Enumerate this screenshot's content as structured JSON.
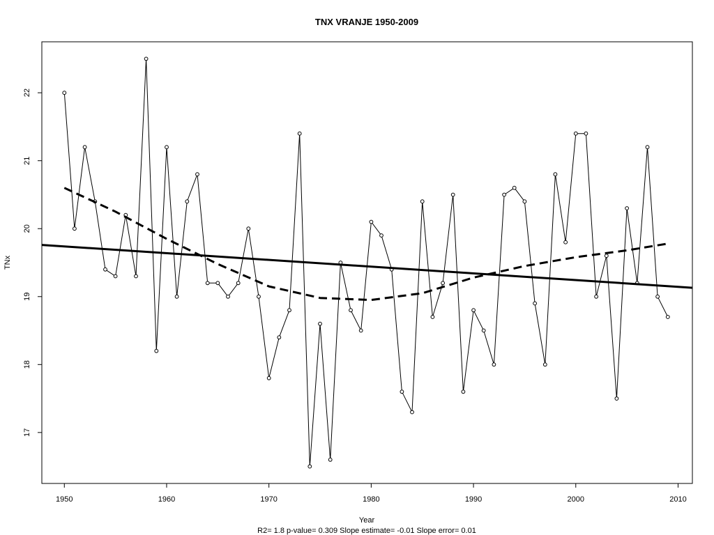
{
  "chart_data": {
    "type": "line",
    "title": "TNX   VRANJE 1950-2009",
    "xlabel": "Year",
    "ylabel": "TNx",
    "subtitle": "R2= 1.8  p-value= 0.309  Slope estimate= -0.01  Slope error= 0.01",
    "xlim": [
      1947.8,
      2011.4
    ],
    "ylim": [
      16.25,
      22.75
    ],
    "x_ticks": [
      1950,
      1960,
      1970,
      1980,
      1990,
      2000,
      2010
    ],
    "y_ticks": [
      17,
      18,
      19,
      20,
      21,
      22
    ],
    "grid": false,
    "x": [
      1950,
      1951,
      1952,
      1953,
      1954,
      1955,
      1956,
      1957,
      1958,
      1959,
      1960,
      1961,
      1962,
      1963,
      1964,
      1965,
      1966,
      1967,
      1968,
      1969,
      1970,
      1971,
      1972,
      1973,
      1974,
      1975,
      1976,
      1977,
      1978,
      1979,
      1980,
      1981,
      1982,
      1983,
      1984,
      1985,
      1986,
      1987,
      1988,
      1989,
      1990,
      1991,
      1992,
      1993,
      1994,
      1995,
      1996,
      1997,
      1998,
      1999,
      2000,
      2001,
      2002,
      2003,
      2004,
      2005,
      2006,
      2007,
      2008,
      2009
    ],
    "values": [
      22.0,
      20.0,
      21.2,
      20.4,
      19.4,
      19.3,
      20.2,
      19.3,
      22.5,
      18.2,
      21.2,
      19.0,
      20.4,
      20.8,
      19.2,
      19.2,
      19.0,
      19.2,
      20.0,
      19.0,
      17.8,
      18.4,
      18.8,
      21.4,
      16.5,
      18.6,
      16.6,
      19.5,
      18.8,
      18.5,
      20.1,
      19.9,
      19.4,
      17.6,
      17.3,
      20.4,
      18.7,
      19.2,
      20.5,
      17.6,
      18.8,
      18.5,
      18.0,
      20.5,
      20.6,
      20.4,
      18.9,
      18.0,
      20.8,
      19.8,
      21.4,
      21.4,
      19.0,
      19.6,
      17.5,
      20.3,
      19.2,
      21.2,
      19.0,
      18.7
    ],
    "linear_trend": {
      "x": [
        1947.8,
        2011.4
      ],
      "y": [
        19.76,
        19.13
      ]
    },
    "smooth_trend": {
      "x": [
        1950,
        1955,
        1960,
        1965,
        1970,
        1975,
        1980,
        1985,
        1990,
        1995,
        2000,
        2005,
        2009
      ],
      "y": [
        20.6,
        20.25,
        19.85,
        19.48,
        19.15,
        18.98,
        18.95,
        19.05,
        19.28,
        19.45,
        19.58,
        19.68,
        19.78
      ]
    }
  }
}
